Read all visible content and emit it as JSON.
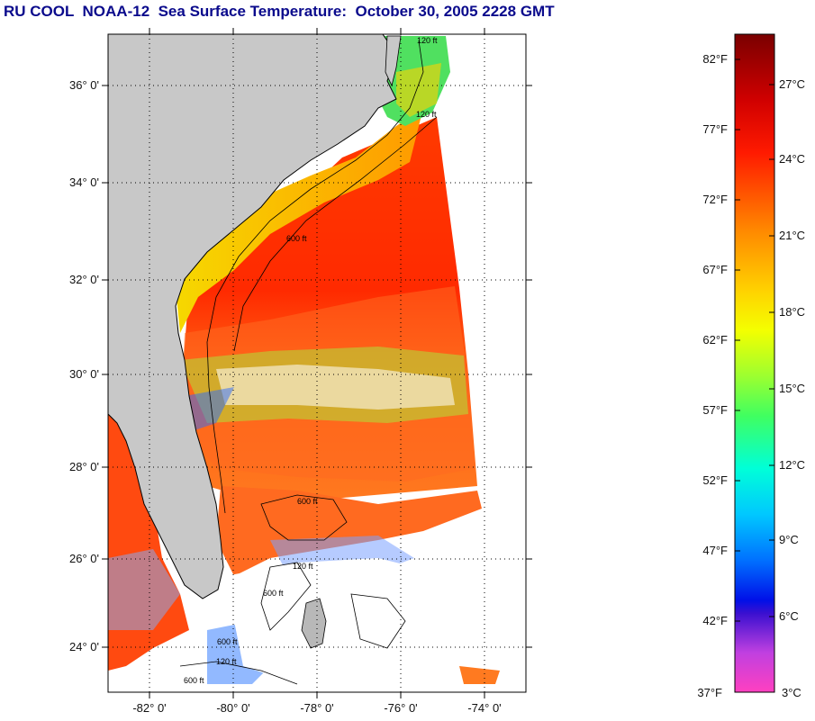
{
  "title": "RU COOL  NOAA-12  Sea Surface Temperature:  October 30, 2005 2228 GMT",
  "map": {
    "lat_labels": [
      "36° 0'",
      "34° 0'",
      "32° 0'",
      "30° 0'",
      "28° 0'",
      "26° 0'",
      "24° 0'"
    ],
    "lon_labels": [
      "-82° 0'",
      "-80° 0'",
      "-78° 0'",
      "-76° 0'",
      "-74° 0'"
    ],
    "contour_labels": [
      "120 ft",
      "120 ft",
      "600 ft",
      "600 ft",
      "120 ft",
      "600 ft",
      "600 ft",
      "120 ft",
      "600 ft"
    ],
    "land_color": "#c8c8c8"
  },
  "colorbar": {
    "fahrenheit_labels": [
      "82°F",
      "77°F",
      "72°F",
      "67°F",
      "62°F",
      "57°F",
      "52°F",
      "47°F",
      "42°F",
      "37°F"
    ],
    "celsius_labels": [
      "27°C",
      "24°C",
      "21°C",
      "18°C",
      "15°C",
      "12°C",
      "9°C",
      "6°C",
      "3°C"
    ]
  }
}
